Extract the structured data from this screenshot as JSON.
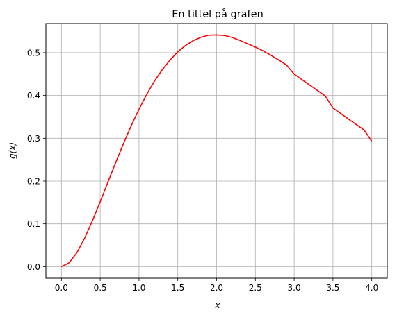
{
  "chart_data": {
    "type": "line",
    "title": "En tittel på grafen",
    "xlabel": "x",
    "ylabel": "g(x)",
    "xlim": [
      -0.2,
      4.2
    ],
    "ylim": [
      -0.027,
      0.568
    ],
    "xticks": [
      "0.0",
      "0.5",
      "1.0",
      "1.5",
      "2.0",
      "2.5",
      "3.0",
      "3.5",
      "4.0"
    ],
    "yticks": [
      "0.0",
      "0.1",
      "0.2",
      "0.3",
      "0.4",
      "0.5"
    ],
    "grid": true,
    "colors": {
      "line": "#ff0000",
      "grid": "#b0b0b0",
      "frame": "#000000"
    },
    "series": [
      {
        "x": [
          0.0,
          0.1,
          0.2,
          0.3,
          0.4,
          0.5,
          0.6,
          0.7,
          0.8,
          0.9,
          1.0,
          1.1,
          1.2,
          1.3,
          1.4,
          1.5,
          1.6,
          1.7,
          1.8,
          1.9,
          2.0,
          2.1,
          2.2,
          2.3,
          2.4,
          2.5,
          2.6,
          2.7,
          2.8,
          2.9,
          3.0,
          3.1,
          3.2,
          3.3,
          3.4,
          3.5,
          3.6,
          3.7,
          3.8,
          3.9,
          4.0
        ],
        "y": [
          0.0,
          0.009,
          0.0327,
          0.0667,
          0.1073,
          0.1516,
          0.1976,
          0.2433,
          0.2876,
          0.3294,
          0.3679,
          0.4027,
          0.4337,
          0.4602,
          0.4826,
          0.502,
          0.5169,
          0.5283,
          0.5362,
          0.5409,
          0.5413,
          0.5402,
          0.5356,
          0.5288,
          0.5209,
          0.5131,
          0.5042,
          0.4939,
          0.4829,
          0.4716,
          0.4499,
          0.4371,
          0.4244,
          0.4117,
          0.3989,
          0.3708,
          0.3578,
          0.3449,
          0.3322,
          0.3196,
          0.2931
        ]
      }
    ]
  }
}
